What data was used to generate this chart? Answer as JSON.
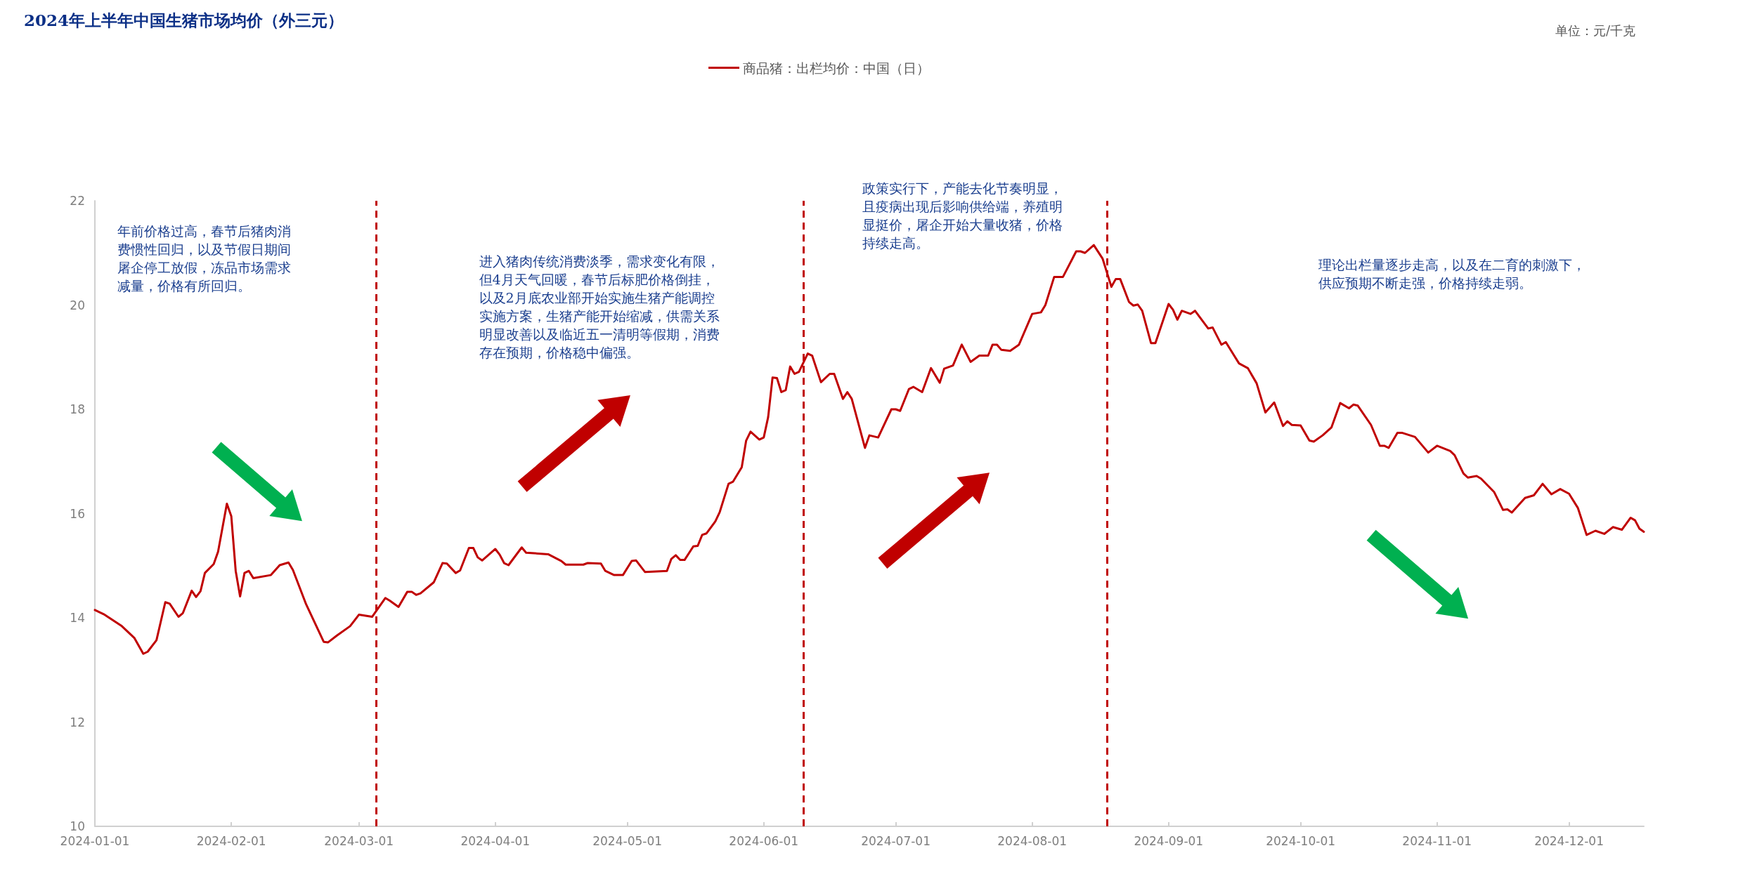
{
  "chart_data": {
    "type": "line",
    "title": "2024年上半年中国生猪市场均价（外三元）",
    "x": [
      "2024-01-01",
      "2024-01-03",
      "2024-01-07",
      "2024-01-10",
      "2024-01-12",
      "2024-01-13",
      "2024-01-15",
      "2024-01-17",
      "2024-01-18",
      "2024-01-20",
      "2024-01-21",
      "2024-01-23",
      "2024-01-24",
      "2024-01-25",
      "2024-01-26",
      "2024-01-28",
      "2024-01-29",
      "2024-01-31",
      "2024-02-01",
      "2024-02-02",
      "2024-02-03",
      "2024-02-04",
      "2024-02-05",
      "2024-02-06",
      "2024-02-10",
      "2024-02-12",
      "2024-02-14",
      "2024-02-15",
      "2024-02-18",
      "2024-02-22",
      "2024-02-23",
      "2024-02-25",
      "2024-02-28",
      "2024-03-01",
      "2024-03-04",
      "2024-03-07",
      "2024-03-08",
      "2024-03-10",
      "2024-03-12",
      "2024-03-13",
      "2024-03-14",
      "2024-03-15",
      "2024-03-18",
      "2024-03-20",
      "2024-03-21",
      "2024-03-23",
      "2024-03-24",
      "2024-03-26",
      "2024-03-27",
      "2024-03-28",
      "2024-03-29",
      "2024-04-01",
      "2024-04-02",
      "2024-04-03",
      "2024-04-04",
      "2024-04-07",
      "2024-04-08",
      "2024-04-13",
      "2024-04-16",
      "2024-04-17",
      "2024-04-21",
      "2024-04-22",
      "2024-04-25",
      "2024-04-26",
      "2024-04-28",
      "2024-04-30",
      "2024-05-02",
      "2024-05-03",
      "2024-05-05",
      "2024-05-10",
      "2024-05-11",
      "2024-05-12",
      "2024-05-13",
      "2024-05-14",
      "2024-05-16",
      "2024-05-17",
      "2024-05-18",
      "2024-05-19",
      "2024-05-21",
      "2024-05-22",
      "2024-05-24",
      "2024-05-25",
      "2024-05-27",
      "2024-05-28",
      "2024-05-29",
      "2024-05-31",
      "2024-06-01",
      "2024-06-02",
      "2024-06-03",
      "2024-06-04",
      "2024-06-05",
      "2024-06-06",
      "2024-06-07",
      "2024-06-08",
      "2024-06-09",
      "2024-06-11",
      "2024-06-12",
      "2024-06-14",
      "2024-06-16",
      "2024-06-17",
      "2024-06-19",
      "2024-06-20",
      "2024-06-21",
      "2024-06-24",
      "2024-06-25",
      "2024-06-27",
      "2024-06-30",
      "2024-07-01",
      "2024-07-02",
      "2024-07-04",
      "2024-07-05",
      "2024-07-07",
      "2024-07-09",
      "2024-07-11",
      "2024-07-12",
      "2024-07-14",
      "2024-07-16",
      "2024-07-18",
      "2024-07-20",
      "2024-07-22",
      "2024-07-23",
      "2024-07-24",
      "2024-07-25",
      "2024-07-27",
      "2024-07-29",
      "2024-08-01",
      "2024-08-03",
      "2024-08-04",
      "2024-08-06",
      "2024-08-08",
      "2024-08-11",
      "2024-08-12",
      "2024-08-13",
      "2024-08-15",
      "2024-08-17",
      "2024-08-19",
      "2024-08-20",
      "2024-08-21",
      "2024-08-23",
      "2024-08-24",
      "2024-08-25",
      "2024-08-26",
      "2024-08-28",
      "2024-08-29",
      "2024-09-01",
      "2024-09-02",
      "2024-09-03",
      "2024-09-04",
      "2024-09-06",
      "2024-09-07",
      "2024-09-10",
      "2024-09-11",
      "2024-09-13",
      "2024-09-14",
      "2024-09-17",
      "2024-09-19",
      "2024-09-21",
      "2024-09-23",
      "2024-09-25",
      "2024-09-27",
      "2024-09-28",
      "2024-09-29",
      "2024-10-01",
      "2024-10-03",
      "2024-10-04",
      "2024-10-06",
      "2024-10-08",
      "2024-10-10",
      "2024-10-12",
      "2024-10-13",
      "2024-10-14",
      "2024-10-17",
      "2024-10-19",
      "2024-10-20",
      "2024-10-21",
      "2024-10-23",
      "2024-10-24",
      "2024-10-27",
      "2024-10-30",
      "2024-11-01",
      "2024-11-04",
      "2024-11-05",
      "2024-11-07",
      "2024-11-08",
      "2024-11-10",
      "2024-11-11",
      "2024-11-14",
      "2024-11-16",
      "2024-11-17",
      "2024-11-18",
      "2024-11-21",
      "2024-11-23",
      "2024-11-25",
      "2024-11-27",
      "2024-11-29",
      "2024-12-01",
      "2024-12-03",
      "2024-12-05",
      "2024-12-07",
      "2024-12-09",
      "2024-12-11",
      "2024-12-13",
      "2024-12-15",
      "2024-12-16",
      "2024-12-17",
      "2024-12-18"
    ],
    "series": [
      {
        "name": "商品猪：出栏均价：中国（日）",
        "color": "#c00000",
        "values": [
          14.15,
          14.07,
          13.85,
          13.61,
          13.31,
          13.35,
          13.57,
          14.3,
          14.27,
          14.02,
          14.09,
          14.52,
          14.4,
          14.51,
          14.86,
          15.03,
          15.27,
          16.19,
          15.95,
          14.9,
          14.41,
          14.86,
          14.9,
          14.76,
          14.82,
          15.01,
          15.06,
          14.92,
          14.26,
          13.54,
          13.53,
          13.66,
          13.84,
          14.06,
          14.02,
          14.38,
          14.33,
          14.21,
          14.5,
          14.5,
          14.44,
          14.47,
          14.68,
          15.05,
          15.04,
          14.86,
          14.91,
          15.34,
          15.34,
          15.16,
          15.1,
          15.32,
          15.21,
          15.05,
          15.01,
          15.35,
          15.25,
          15.22,
          15.09,
          15.02,
          15.02,
          15.05,
          15.04,
          14.9,
          14.82,
          14.82,
          15.09,
          15.1,
          14.88,
          14.9,
          15.13,
          15.2,
          15.11,
          15.11,
          15.37,
          15.38,
          15.59,
          15.62,
          15.85,
          16.03,
          16.57,
          16.61,
          16.89,
          17.4,
          17.57,
          17.42,
          17.46,
          17.85,
          18.61,
          18.6,
          18.33,
          18.37,
          18.82,
          18.68,
          18.72,
          19.07,
          19.03,
          18.52,
          18.68,
          18.68,
          18.2,
          18.33,
          18.2,
          17.26,
          17.5,
          17.46,
          18.0,
          18.0,
          17.97,
          18.39,
          18.43,
          18.33,
          18.79,
          18.51,
          18.78,
          18.84,
          19.24,
          18.91,
          19.03,
          19.03,
          19.24,
          19.24,
          19.14,
          19.12,
          19.24,
          19.83,
          19.86,
          20.0,
          20.54,
          20.54,
          21.03,
          21.03,
          21.0,
          21.15,
          20.89,
          20.35,
          20.5,
          20.5,
          20.06,
          19.99,
          20.01,
          19.89,
          19.27,
          19.27,
          20.02,
          19.91,
          19.72,
          19.89,
          19.83,
          19.89,
          19.55,
          19.57,
          19.24,
          19.29,
          18.88,
          18.79,
          18.5,
          17.94,
          18.13,
          17.68,
          17.77,
          17.7,
          17.69,
          17.4,
          17.38,
          17.5,
          17.65,
          18.12,
          18.02,
          18.09,
          18.07,
          17.7,
          17.3,
          17.3,
          17.26,
          17.55,
          17.55,
          17.47,
          17.17,
          17.3,
          17.2,
          17.12,
          16.77,
          16.69,
          16.72,
          16.67,
          16.41,
          16.07,
          16.08,
          16.02,
          16.3,
          16.35,
          16.57,
          16.37,
          16.47,
          16.38,
          16.11,
          15.59,
          15.67,
          15.61,
          15.74,
          15.69,
          15.92,
          15.87,
          15.71,
          15.65
        ]
      }
    ],
    "xlim": [
      "2024-01-01",
      "2024-12-18"
    ],
    "xticks": [
      "2024-01-01",
      "2024-02-01",
      "2024-03-01",
      "2024-04-01",
      "2024-05-01",
      "2024-06-01",
      "2024-07-01",
      "2024-08-01",
      "2024-09-01",
      "2024-10-01",
      "2024-11-01",
      "2024-12-01"
    ],
    "ylim": [
      10,
      22
    ],
    "yticks": [
      10,
      12,
      14,
      16,
      18,
      20,
      22
    ],
    "ref_lines": [
      {
        "axis": "x",
        "value": "2024-03-05",
        "color": "#c00000",
        "line_style": "dashed"
      },
      {
        "axis": "x",
        "value": "2024-06-10",
        "color": "#c00000",
        "line_style": "dashed"
      },
      {
        "axis": "x",
        "value": "2024-08-18",
        "color": "#c00000",
        "line_style": "dashed"
      }
    ],
    "annotations": [
      "年前价格过高，春节后猪肉消费惯性回归，以及节假日期间屠企停工放假，冻品市场需求减量，价格有所回归。",
      "进入猪肉传统消费淡季，需求变化有限，但4月天气回暖，春节后标肥价格倒挂，以及2月底农业部开始实施生猪产能调控实施方案，生猪产能开始缩减，供需关系明显改善以及临近五一清明等假期，消费存在预期，价格稳中偏强。",
      "政策实行下，产能去化节奏明显，且疫病出现后影响供给端，养殖明显挺价，屠企开始大量收猪，价格持续走高。",
      "理论出栏量逐步走高，以及在二育的刺激下，供应预期不断走强，价格持续走弱。",
      "单位：元/千克"
    ],
    "legend": "top",
    "marker": "none"
  }
}
